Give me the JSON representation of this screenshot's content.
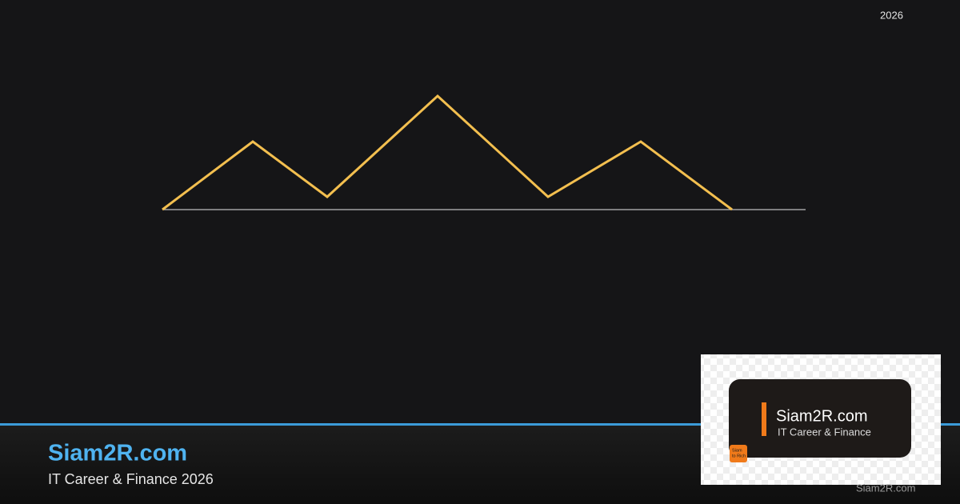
{
  "header": {
    "year": "2026"
  },
  "brand": {
    "title": "Siam2R.com",
    "subtitle": "IT Career & Finance 2026"
  },
  "badge": {
    "title": "Siam2R.com",
    "subtitle": "IT Career & Finance",
    "logo": [
      "Siam",
      "to Rich"
    ]
  },
  "watermark": "Siam2R.com"
}
